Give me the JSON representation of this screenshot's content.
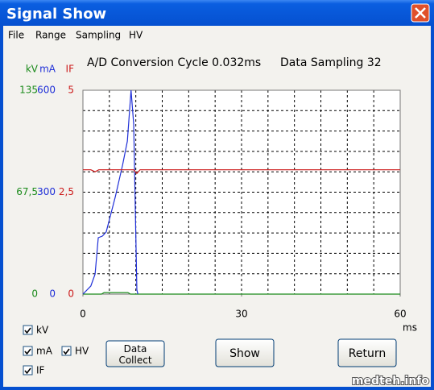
{
  "window": {
    "title": "Signal Show"
  },
  "menu": [
    "File",
    "Range",
    "Sampling",
    "HV"
  ],
  "chart_data": {
    "type": "line",
    "title": "A/D Conversion Cycle 0.032ms",
    "subtitle": "Data Sampling 32",
    "x_label": "ms",
    "xlim": [
      0,
      60
    ],
    "xticks": [
      0,
      30,
      60
    ],
    "grid": true,
    "series": [
      {
        "name": "kV",
        "color": "#1a8a1a",
        "ylim": [
          0,
          135
        ],
        "yticks": [
          0,
          {
            "value": 67.5,
            "label": "67,5"
          },
          135
        ],
        "x": [
          0,
          3.5,
          4,
          8.5,
          9,
          60
        ],
        "values": [
          0,
          0,
          1,
          1,
          0,
          0
        ]
      },
      {
        "name": "mA",
        "color": "#1f2fd8",
        "ylim": [
          0,
          600
        ],
        "yticks": [
          0,
          300,
          600
        ],
        "x": [
          0,
          1.5,
          2.3,
          2.9,
          3.7,
          4.4,
          6.1,
          7.5,
          8.4,
          9.1,
          9.6,
          10.2,
          10.4
        ],
        "values": [
          0,
          24,
          59,
          166,
          171,
          183,
          285,
          380,
          450,
          600,
          500,
          12,
          0
        ]
      },
      {
        "name": "IF",
        "color": "#cc1a1a",
        "ylim": [
          0,
          5
        ],
        "yticks": [
          0,
          {
            "value": 2.5,
            "label": "2,5"
          },
          5
        ],
        "x": [
          0,
          1.5,
          2.3,
          3,
          9.6,
          10.2,
          10.8,
          60
        ],
        "values": [
          3.05,
          3.05,
          3.0,
          3.05,
          3.05,
          2.96,
          3.05,
          3.05
        ]
      }
    ]
  },
  "controls": {
    "checkboxes": [
      "kV",
      "mA",
      "HV",
      "IF"
    ],
    "buttons": [
      "Data\nCollect",
      "Show",
      "Return"
    ]
  },
  "watermark": "medteh.info"
}
